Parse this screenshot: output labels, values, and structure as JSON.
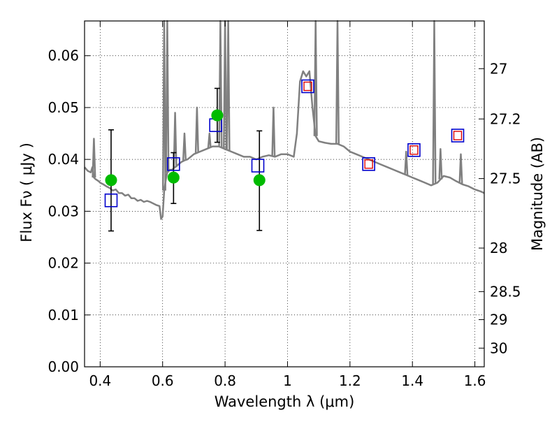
{
  "chart_data": {
    "type": "line",
    "xlabel": "Wavelength  λ (μm)",
    "ylabel": "Flux  Fν  ( μJy )",
    "ylabel_right": "Magnitude (AB)",
    "xlim": [
      0.35,
      1.63
    ],
    "ylim": [
      0.0,
      0.0667
    ],
    "grid": true,
    "x_ticks": [
      0.4,
      0.6,
      0.8,
      1.0,
      1.2,
      1.4,
      1.6
    ],
    "x_tick_labels": [
      "0.4",
      "0.6",
      "0.8",
      "1",
      "1.2",
      "1.4",
      "1.6"
    ],
    "y_ticks": [
      0.0,
      0.01,
      0.02,
      0.03,
      0.04,
      0.05,
      0.06
    ],
    "y_tick_labels": [
      "0.00",
      "0.01",
      "0.02",
      "0.03",
      "0.04",
      "0.05",
      "0.06"
    ],
    "right_ticks": [
      {
        "flux": 0.0575,
        "label": "27"
      },
      {
        "flux": 0.0478,
        "label": "27.2"
      },
      {
        "flux": 0.0363,
        "label": "27.5"
      },
      {
        "flux": 0.0229,
        "label": "28"
      },
      {
        "flux": 0.0145,
        "label": "28.5"
      },
      {
        "flux": 0.0091,
        "label": "29"
      },
      {
        "flux": 0.0036,
        "label": "30"
      }
    ],
    "series": [
      {
        "kind": "spectrum",
        "color": "#808080",
        "points": [
          [
            0.35,
            0.0385
          ],
          [
            0.36,
            0.0378
          ],
          [
            0.37,
            0.0375
          ],
          [
            0.375,
            0.0385
          ],
          [
            0.38,
            0.0365
          ],
          [
            0.385,
            0.0362
          ],
          [
            0.39,
            0.036
          ],
          [
            0.395,
            0.0358
          ],
          [
            0.4,
            0.0355
          ],
          [
            0.41,
            0.0352
          ],
          [
            0.42,
            0.0348
          ],
          [
            0.43,
            0.0345
          ],
          [
            0.44,
            0.034
          ],
          [
            0.45,
            0.0342
          ],
          [
            0.46,
            0.0335
          ],
          [
            0.47,
            0.0335
          ],
          [
            0.48,
            0.033
          ],
          [
            0.49,
            0.0332
          ],
          [
            0.5,
            0.0325
          ],
          [
            0.51,
            0.0325
          ],
          [
            0.52,
            0.032
          ],
          [
            0.53,
            0.0322
          ],
          [
            0.54,
            0.0318
          ],
          [
            0.55,
            0.032
          ],
          [
            0.56,
            0.0318
          ],
          [
            0.57,
            0.0315
          ],
          [
            0.58,
            0.0312
          ],
          [
            0.59,
            0.031
          ],
          [
            0.595,
            0.0285
          ],
          [
            0.6,
            0.029
          ],
          [
            0.605,
            0.034
          ],
          [
            0.61,
            0.036
          ],
          [
            0.615,
            0.0375
          ],
          [
            0.62,
            0.038
          ],
          [
            0.63,
            0.038
          ],
          [
            0.64,
            0.0385
          ],
          [
            0.65,
            0.039
          ],
          [
            0.66,
            0.0395
          ],
          [
            0.67,
            0.0398
          ],
          [
            0.68,
            0.04
          ],
          [
            0.69,
            0.0405
          ],
          [
            0.7,
            0.041
          ],
          [
            0.72,
            0.0415
          ],
          [
            0.74,
            0.042
          ],
          [
            0.76,
            0.0425
          ],
          [
            0.78,
            0.0425
          ],
          [
            0.8,
            0.042
          ],
          [
            0.82,
            0.0415
          ],
          [
            0.84,
            0.041
          ],
          [
            0.86,
            0.0405
          ],
          [
            0.88,
            0.0405
          ],
          [
            0.9,
            0.04
          ],
          [
            0.92,
            0.0405
          ],
          [
            0.94,
            0.0408
          ],
          [
            0.96,
            0.0405
          ],
          [
            0.98,
            0.041
          ],
          [
            1.0,
            0.041
          ],
          [
            1.02,
            0.0405
          ],
          [
            1.03,
            0.045
          ],
          [
            1.04,
            0.055
          ],
          [
            1.05,
            0.057
          ],
          [
            1.06,
            0.056
          ],
          [
            1.07,
            0.057
          ],
          [
            1.08,
            0.05
          ],
          [
            1.09,
            0.0445
          ],
          [
            1.1,
            0.0435
          ],
          [
            1.12,
            0.0432
          ],
          [
            1.14,
            0.043
          ],
          [
            1.16,
            0.043
          ],
          [
            1.18,
            0.0425
          ],
          [
            1.2,
            0.0415
          ],
          [
            1.22,
            0.041
          ],
          [
            1.24,
            0.0405
          ],
          [
            1.26,
            0.04
          ],
          [
            1.28,
            0.0395
          ],
          [
            1.3,
            0.039
          ],
          [
            1.32,
            0.0385
          ],
          [
            1.34,
            0.038
          ],
          [
            1.36,
            0.0375
          ],
          [
            1.38,
            0.037
          ],
          [
            1.4,
            0.0365
          ],
          [
            1.42,
            0.036
          ],
          [
            1.44,
            0.0355
          ],
          [
            1.46,
            0.035
          ],
          [
            1.48,
            0.0355
          ],
          [
            1.5,
            0.0368
          ],
          [
            1.52,
            0.0365
          ],
          [
            1.54,
            0.0358
          ],
          [
            1.56,
            0.0352
          ],
          [
            1.58,
            0.0348
          ],
          [
            1.6,
            0.0342
          ],
          [
            1.62,
            0.0338
          ],
          [
            1.63,
            0.0335
          ]
        ]
      },
      {
        "kind": "spectrum-lines",
        "color": "#808080",
        "peaks": [
          [
            0.38,
            0.044
          ],
          [
            0.605,
            0.0667
          ],
          [
            0.615,
            0.0667
          ],
          [
            0.64,
            0.049
          ],
          [
            0.67,
            0.045
          ],
          [
            0.71,
            0.05
          ],
          [
            0.75,
            0.045
          ],
          [
            0.785,
            0.0667
          ],
          [
            0.8,
            0.0667
          ],
          [
            0.81,
            0.0667
          ],
          [
            0.955,
            0.05
          ],
          [
            1.09,
            0.0667
          ],
          [
            1.16,
            0.0667
          ],
          [
            1.38,
            0.0415
          ],
          [
            1.47,
            0.0667
          ],
          [
            1.49,
            0.042
          ],
          [
            1.555,
            0.041
          ]
        ]
      },
      {
        "kind": "points-green",
        "color": "#00bb00",
        "x": [
          0.435,
          0.635,
          0.775,
          0.91
        ],
        "y": [
          0.036,
          0.0365,
          0.0485,
          0.036
        ],
        "err_low": [
          0.0262,
          0.0315,
          0.0433,
          0.0263
        ],
        "err_high": [
          0.0457,
          0.0413,
          0.0537,
          0.0455
        ]
      },
      {
        "kind": "squares-blue",
        "color": "#0000cc",
        "x": [
          0.435,
          0.635,
          0.77,
          0.905,
          1.065,
          1.26,
          1.405,
          1.545
        ],
        "y": [
          0.0321,
          0.0391,
          0.0466,
          0.0388,
          0.0541,
          0.0391,
          0.0418,
          0.0446
        ]
      },
      {
        "kind": "squares-red",
        "color": "#dd0000",
        "x": [
          1.065,
          1.26,
          1.405,
          1.545
        ],
        "y": [
          0.0541,
          0.0391,
          0.0418,
          0.0446
        ]
      }
    ]
  }
}
